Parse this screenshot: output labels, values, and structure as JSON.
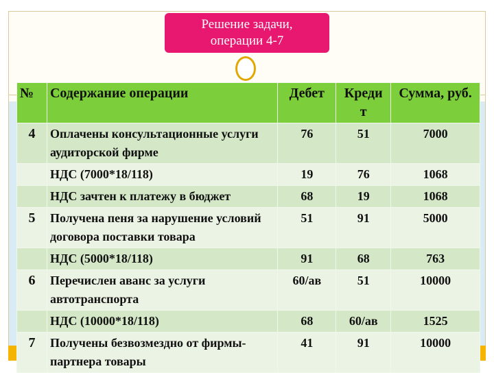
{
  "title": {
    "line1": "Решение задачи,",
    "line2": "операции 4-7"
  },
  "colors": {
    "title_bg": "#e8176f",
    "header_bg": "#7ccf3a",
    "accent_ring": "#e0a800",
    "bottom_bar": "#f5b400"
  },
  "table": {
    "headers": {
      "no": "№",
      "content": "Содержание операции",
      "debit": "Дебет",
      "credit": "Кредит",
      "sum": "Сумма, руб."
    },
    "rows": [
      {
        "no": "4",
        "content": "Оплачены консультационные услуги аудиторской фирме",
        "debit": "76",
        "credit": "51",
        "sum": "7000"
      },
      {
        "no": "",
        "content": "НДС (7000*18/118)",
        "debit": "19",
        "credit": "76",
        "sum": "1068"
      },
      {
        "no": "",
        "content": "НДС зачтен к платежу в бюджет",
        "debit": "68",
        "credit": "19",
        "sum": "1068"
      },
      {
        "no": "5",
        "content": "Получена пеня за нарушение условий договора поставки товара",
        "debit": "51",
        "credit": "91",
        "sum": "5000"
      },
      {
        "no": "",
        "content": "НДС (5000*18/118)",
        "debit": "91",
        "credit": "68",
        "sum": "763"
      },
      {
        "no": "6",
        "content": "Перечислен аванс за услуги автотранспорта",
        "debit": "60/ав",
        "credit": "51",
        "sum": "10000"
      },
      {
        "no": "",
        "content": "НДС (10000*18/118)",
        "debit": "68",
        "credit": "60/ав",
        "sum": "1525"
      },
      {
        "no": "7",
        "content": "Получены безвозмездно от фирмы-партнера товары",
        "debit": "41",
        "credit": "91",
        "sum": "10000"
      }
    ]
  }
}
